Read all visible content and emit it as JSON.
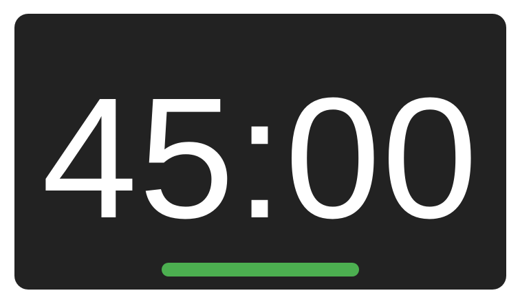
{
  "timer": {
    "display": "45:00"
  },
  "progress": {
    "fraction": 1.0,
    "color": "#4caf50"
  },
  "colors": {
    "card_background": "#222222",
    "text": "#ffffff",
    "accent": "#4caf50"
  }
}
